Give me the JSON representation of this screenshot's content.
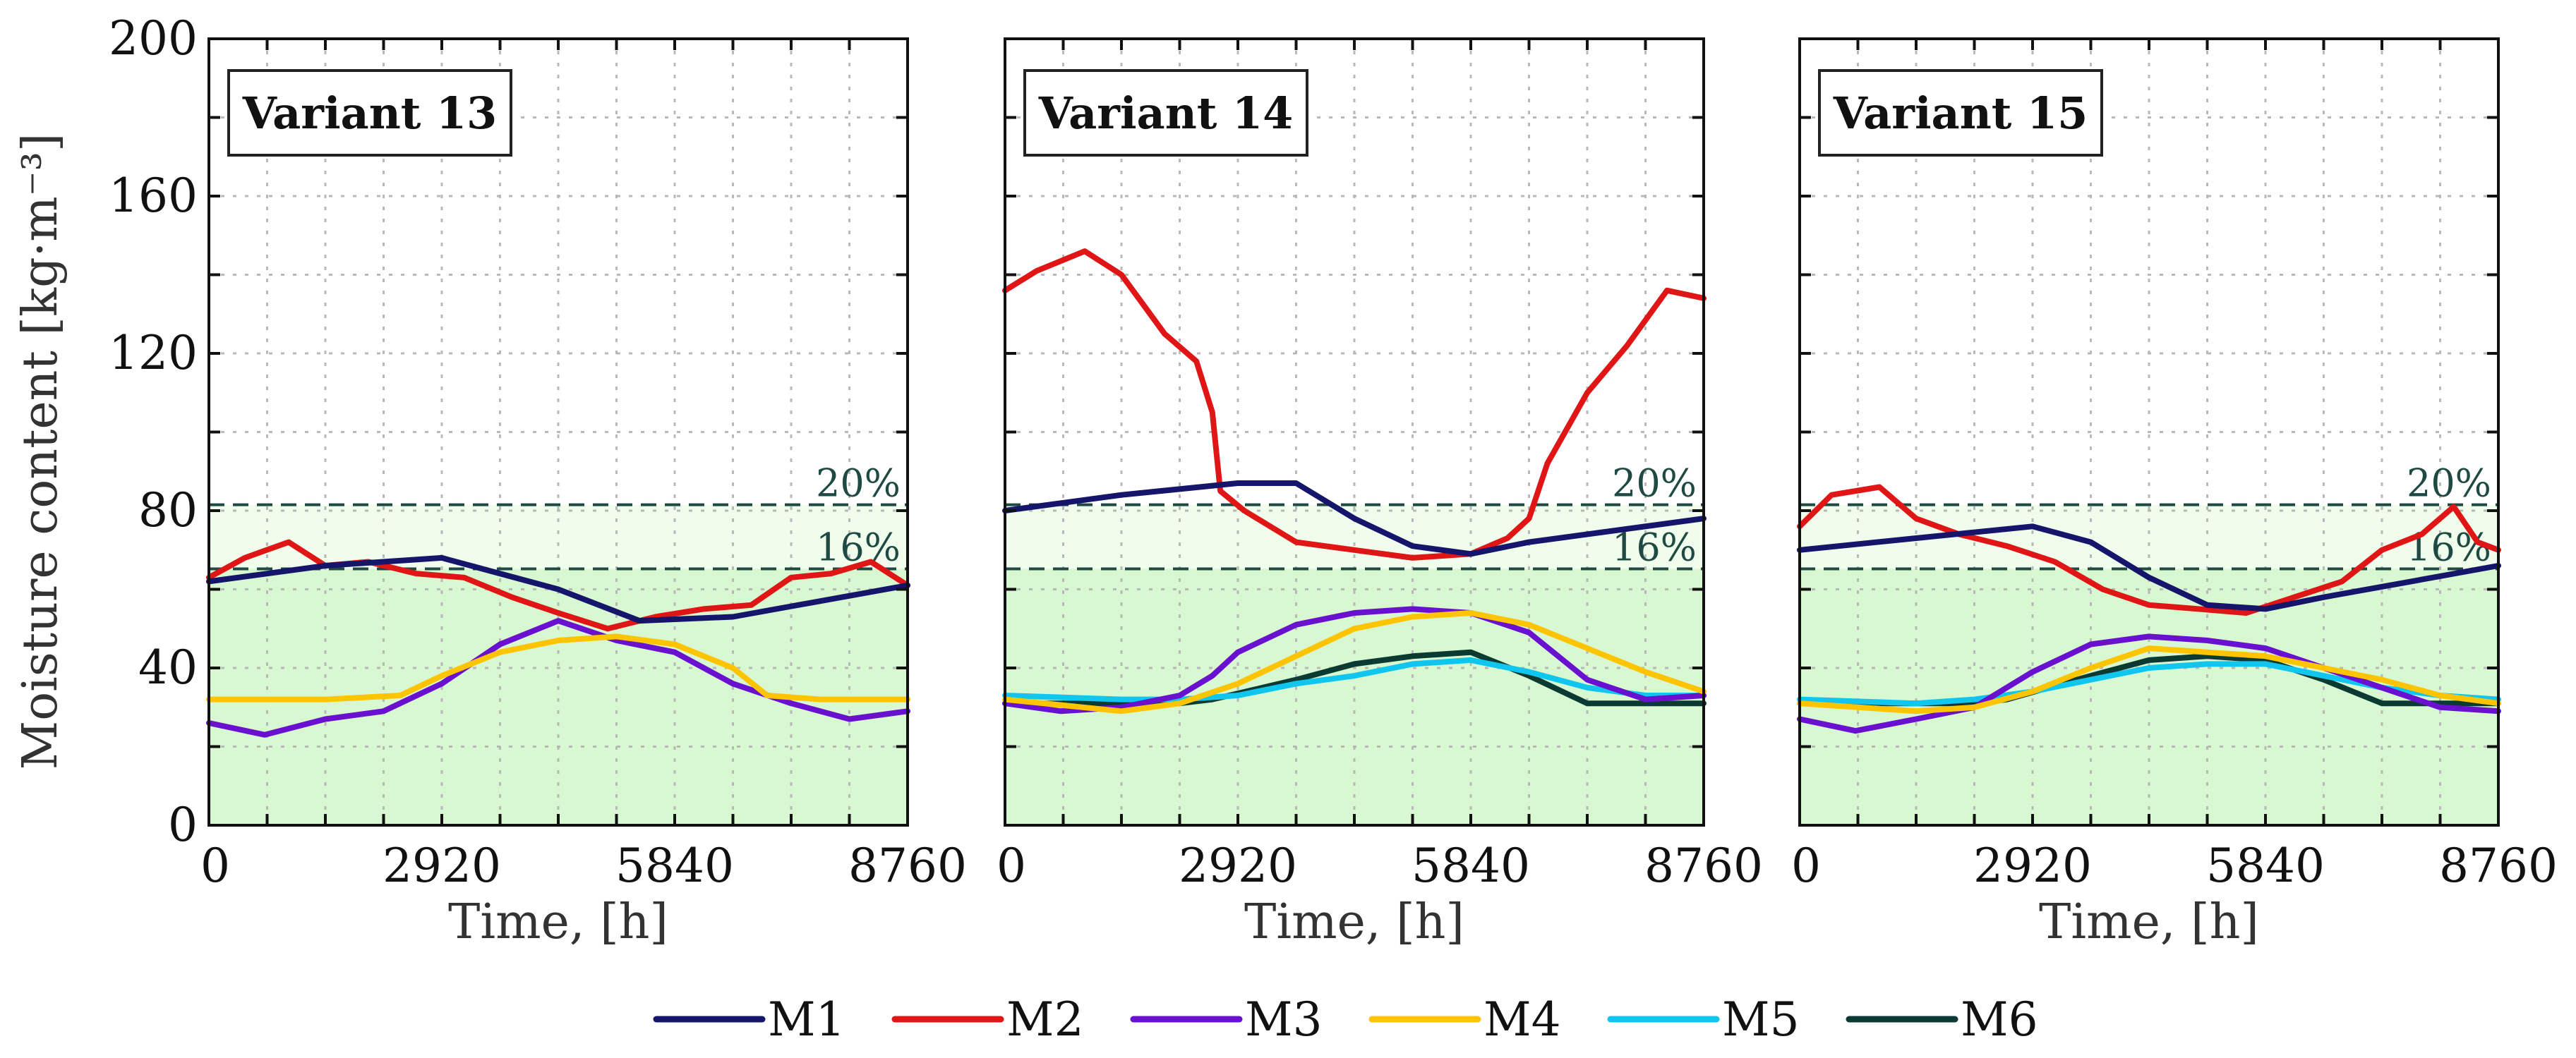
{
  "colors": {
    "M1": "#15156b",
    "M2": "#e01515",
    "M3": "#6a10cf",
    "M4": "#ffc400",
    "M5": "#10c6ef",
    "M6": "#0b3a33",
    "threshold": "#1f4a44",
    "band_light": "#f0fcec",
    "band_dark": "#d8f8d2",
    "grid": "#b8b8b8"
  },
  "chart_data": {
    "type": "line",
    "ylabel": "Moisture content [kg·m⁻³]",
    "xlabel": "Time, [h]",
    "ylim": [
      0,
      200
    ],
    "xlim": [
      0,
      8760
    ],
    "yticks": [
      "0",
      "40",
      "80",
      "120",
      "160",
      "200"
    ],
    "xticks": [
      "0",
      "2920",
      "5840",
      "8760"
    ],
    "thresholds": [
      {
        "label": "20%",
        "value": 81.5
      },
      {
        "label": "16%",
        "value": 65.2
      }
    ],
    "legend": [
      "M1",
      "M2",
      "M3",
      "M4",
      "M5",
      "M6"
    ],
    "panels": [
      {
        "title": "Variant 13",
        "series": [
          {
            "name": "M1",
            "x": [
              0,
              1460,
              2920,
              4380,
              5400,
              6570,
              7665,
              8760
            ],
            "y": [
              62,
              66,
              68,
              60,
              52,
              53,
              57,
              61
            ]
          },
          {
            "name": "M2",
            "x": [
              0,
              450,
              1000,
              1460,
              2000,
              2600,
              3200,
              3800,
              4380,
              5000,
              5600,
              6200,
              6800,
              7300,
              7800,
              8300,
              8760
            ],
            "y": [
              63,
              68,
              72,
              66,
              67,
              64,
              63,
              58,
              54,
              50,
              53,
              55,
              56,
              63,
              64,
              67,
              61
            ]
          },
          {
            "name": "M3",
            "x": [
              0,
              700,
              1460,
              2190,
              2920,
              3650,
              4380,
              5110,
              5840,
              6570,
              7300,
              8030,
              8760
            ],
            "y": [
              26,
              23,
              27,
              29,
              36,
              46,
              52,
              47,
              44,
              36,
              31,
              27,
              29
            ]
          },
          {
            "name": "M4",
            "x": [
              0,
              1460,
              2400,
              2920,
              3650,
              4380,
              5110,
              5840,
              6570,
              7000,
              7665,
              8760
            ],
            "y": [
              32,
              32,
              33,
              38,
              44,
              47,
              48,
              46,
              40,
              33,
              32,
              32
            ]
          }
        ]
      },
      {
        "title": "Variant 14",
        "series": [
          {
            "name": "M1",
            "x": [
              0,
              1460,
              2920,
              3650,
              4380,
              5110,
              5840,
              6570,
              7665,
              8760
            ],
            "y": [
              80,
              84,
              87,
              87,
              78,
              71,
              69,
              72,
              75,
              78
            ]
          },
          {
            "name": "M2",
            "x": [
              0,
              400,
              1000,
              1460,
              2000,
              2400,
              2600,
              2700,
              3000,
              3650,
              4380,
              5110,
              5840,
              6300,
              6570,
              6800,
              7300,
              7800,
              8300,
              8760
            ],
            "y": [
              136,
              141,
              146,
              140,
              125,
              118,
              105,
              85,
              80,
              72,
              70,
              68,
              69,
              73,
              78,
              92,
              110,
              122,
              136,
              134
            ]
          },
          {
            "name": "M3",
            "x": [
              0,
              700,
              1460,
              2190,
              2600,
              2920,
              3650,
              4380,
              5110,
              5840,
              6570,
              7300,
              8030,
              8760
            ],
            "y": [
              31,
              29,
              30,
              33,
              38,
              44,
              51,
              54,
              55,
              54,
              49,
              37,
              32,
              33
            ]
          },
          {
            "name": "M4",
            "x": [
              0,
              1460,
              2190,
              2920,
              3650,
              4380,
              5110,
              5840,
              6570,
              7300,
              8030,
              8760
            ],
            "y": [
              32,
              29,
              31,
              36,
              43,
              50,
              53,
              54,
              51,
              45,
              39,
              34
            ]
          },
          {
            "name": "M5",
            "x": [
              0,
              1460,
              2190,
              2920,
              3650,
              4380,
              5110,
              5840,
              6570,
              7300,
              8030,
              8760
            ],
            "y": [
              33,
              32,
              32,
              33,
              36,
              38,
              41,
              42,
              39,
              35,
              33,
              33
            ]
          },
          {
            "name": "M6",
            "x": [
              0,
              2190,
              2600,
              3650,
              4380,
              5110,
              5840,
              6570,
              7300,
              8760
            ],
            "y": [
              31,
              31,
              32,
              37,
              41,
              43,
              44,
              38,
              31,
              31
            ]
          }
        ]
      },
      {
        "title": "Variant 15",
        "series": [
          {
            "name": "M1",
            "x": [
              0,
              1460,
              2920,
              3650,
              4380,
              5110,
              5840,
              6570,
              7665,
              8760
            ],
            "y": [
              70,
              73,
              76,
              72,
              63,
              56,
              55,
              58,
              62,
              66
            ]
          },
          {
            "name": "M2",
            "x": [
              0,
              400,
              1000,
              1460,
              2000,
              2600,
              3200,
              3800,
              4380,
              5000,
              5600,
              6200,
              6800,
              7300,
              7800,
              8200,
              8500,
              8760
            ],
            "y": [
              76,
              84,
              86,
              78,
              74,
              71,
              67,
              60,
              56,
              55,
              54,
              58,
              62,
              70,
              74,
              81,
              72,
              70
            ]
          },
          {
            "name": "M3",
            "x": [
              0,
              700,
              1460,
              2190,
              2920,
              3650,
              4380,
              5110,
              5840,
              6570,
              7300,
              8030,
              8760
            ],
            "y": [
              27,
              24,
              27,
              30,
              39,
              46,
              48,
              47,
              45,
              40,
              35,
              30,
              29
            ]
          },
          {
            "name": "M4",
            "x": [
              0,
              1460,
              2190,
              2920,
              3650,
              4380,
              5110,
              5840,
              6570,
              7300,
              8030,
              8760
            ],
            "y": [
              31,
              29,
              30,
              34,
              40,
              45,
              44,
              43,
              40,
              37,
              33,
              31
            ]
          },
          {
            "name": "M5",
            "x": [
              0,
              1460,
              2190,
              2920,
              3650,
              4380,
              5110,
              5840,
              6570,
              7300,
              8030,
              8760
            ],
            "y": [
              32,
              31,
              32,
              34,
              37,
              40,
              41,
              41,
              38,
              35,
              33,
              32
            ]
          },
          {
            "name": "M6",
            "x": [
              0,
              2190,
              2600,
              3650,
              4380,
              5110,
              5840,
              6570,
              7300,
              8760
            ],
            "y": [
              31,
              31,
              32,
              38,
              42,
              43,
              42,
              37,
              31,
              31
            ]
          }
        ]
      }
    ]
  }
}
